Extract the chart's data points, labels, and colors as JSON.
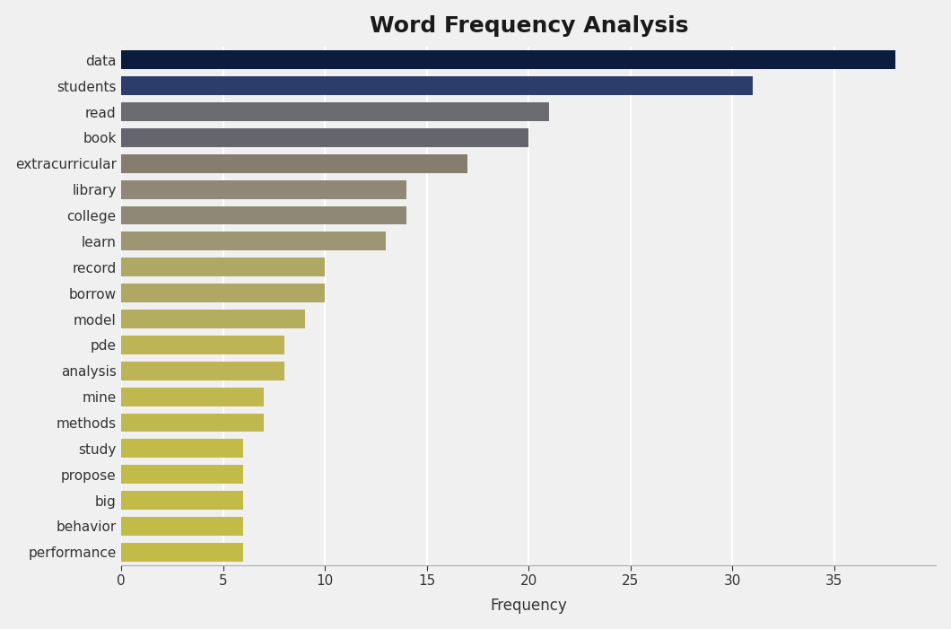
{
  "title": "Word Frequency Analysis",
  "xlabel": "Frequency",
  "categories": [
    "data",
    "students",
    "read",
    "book",
    "extracurricular",
    "library",
    "college",
    "learn",
    "record",
    "borrow",
    "model",
    "pde",
    "analysis",
    "mine",
    "methods",
    "study",
    "propose",
    "big",
    "behavior",
    "performance"
  ],
  "values": [
    38,
    31,
    21,
    20,
    17,
    14,
    14,
    13,
    10,
    10,
    9,
    8,
    8,
    7,
    7,
    6,
    6,
    6,
    6,
    6
  ],
  "colors": [
    "#0c1c3e",
    "#2d3d6b",
    "#6b6b72",
    "#65656e",
    "#857e6e",
    "#908876",
    "#908876",
    "#9e9672",
    "#afa865",
    "#afa865",
    "#b4ad5e",
    "#bcb455",
    "#bcb455",
    "#bfb84e",
    "#bfb84e",
    "#c2bb47",
    "#c2bb47",
    "#c2bb47",
    "#c2bb47",
    "#c2bb47"
  ],
  "background_color": "#f0f0f0",
  "title_fontsize": 18,
  "axis_label_fontsize": 12,
  "tick_fontsize": 11,
  "xlim": [
    0,
    40
  ],
  "xticks": [
    0,
    5,
    10,
    15,
    20,
    25,
    30,
    35
  ]
}
